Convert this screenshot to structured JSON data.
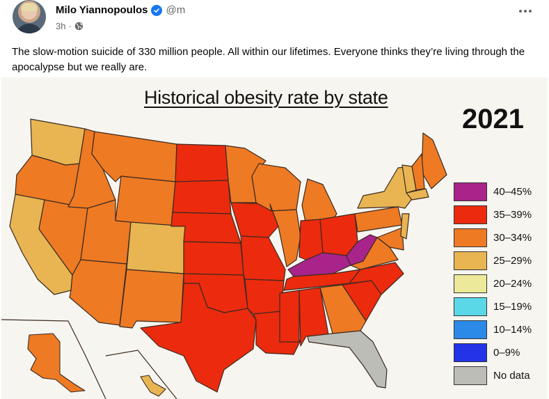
{
  "post": {
    "author_name": "Milo Yiannopoulos",
    "handle": "@m",
    "time": "3h",
    "separator": "·",
    "text": "The slow-motion suicide of 330 million people. All within our lifetimes. Everyone thinks they’re living through the apocalypse but we really are.",
    "verified": true
  },
  "image": {
    "title": "Historical obesity rate by state",
    "year": "2021",
    "colors": {
      "c40": "#a8248a",
      "c35": "#ec2a0e",
      "c30": "#ee7a24",
      "c25": "#e8b552",
      "c20": "#ece99a",
      "c15": "#5ad8e8",
      "c10": "#2b8ae8",
      "c0": "#2233e8",
      "none": "#bdbdb8"
    },
    "legend": [
      {
        "label": "40–45%",
        "color": "#a8248a"
      },
      {
        "label": "35–39%",
        "color": "#ec2a0e"
      },
      {
        "label": "30–34%",
        "color": "#ee7a24"
      },
      {
        "label": "25–29%",
        "color": "#e8b552"
      },
      {
        "label": "20–24%",
        "color": "#ece99a"
      },
      {
        "label": "15–19%",
        "color": "#5ad8e8"
      },
      {
        "label": "10–14%",
        "color": "#2b8ae8"
      },
      {
        "label": "0–9%",
        "color": "#2233e8"
      },
      {
        "label": "No data",
        "color": "#bdbdb8"
      }
    ],
    "states": [
      {
        "name": "WA",
        "level": "c25"
      },
      {
        "name": "OR",
        "level": "c30"
      },
      {
        "name": "CA",
        "level": "c25"
      },
      {
        "name": "NV",
        "level": "c30"
      },
      {
        "name": "ID",
        "level": "c30"
      },
      {
        "name": "MT",
        "level": "c30"
      },
      {
        "name": "WY",
        "level": "c30"
      },
      {
        "name": "UT",
        "level": "c30"
      },
      {
        "name": "AZ",
        "level": "c30"
      },
      {
        "name": "CO",
        "level": "c25"
      },
      {
        "name": "NM",
        "level": "c30"
      },
      {
        "name": "ND",
        "level": "c35"
      },
      {
        "name": "SD",
        "level": "c35"
      },
      {
        "name": "NE",
        "level": "c35"
      },
      {
        "name": "KS",
        "level": "c35"
      },
      {
        "name": "OK",
        "level": "c35"
      },
      {
        "name": "TX",
        "level": "c35"
      },
      {
        "name": "MN",
        "level": "c30"
      },
      {
        "name": "IA",
        "level": "c35"
      },
      {
        "name": "MO",
        "level": "c35"
      },
      {
        "name": "AR",
        "level": "c35"
      },
      {
        "name": "LA",
        "level": "c35"
      },
      {
        "name": "WI",
        "level": "c30"
      },
      {
        "name": "IL",
        "level": "c30"
      },
      {
        "name": "MI",
        "level": "c30"
      },
      {
        "name": "IN",
        "level": "c35"
      },
      {
        "name": "OH",
        "level": "c35"
      },
      {
        "name": "KY",
        "level": "c40"
      },
      {
        "name": "WV",
        "level": "c40"
      },
      {
        "name": "TN",
        "level": "c35"
      },
      {
        "name": "MS",
        "level": "c35"
      },
      {
        "name": "AL",
        "level": "c35"
      },
      {
        "name": "GA",
        "level": "c30"
      },
      {
        "name": "FL",
        "level": "none"
      },
      {
        "name": "SC",
        "level": "c35"
      },
      {
        "name": "NC",
        "level": "c35"
      },
      {
        "name": "VA",
        "level": "c30"
      },
      {
        "name": "PA",
        "level": "c30"
      },
      {
        "name": "NY",
        "level": "c25"
      },
      {
        "name": "ME",
        "level": "c30"
      },
      {
        "name": "NH",
        "level": "c30"
      },
      {
        "name": "VT",
        "level": "c25"
      },
      {
        "name": "MA",
        "level": "c25"
      },
      {
        "name": "MD",
        "level": "c30"
      },
      {
        "name": "NJ",
        "level": "c25"
      },
      {
        "name": "AK",
        "level": "c30"
      },
      {
        "name": "HI",
        "level": "c25"
      }
    ]
  }
}
